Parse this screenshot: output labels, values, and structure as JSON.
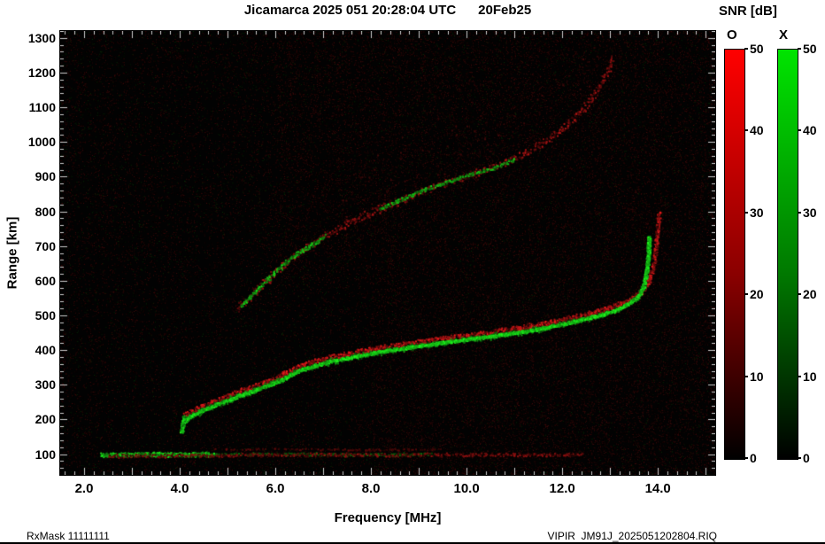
{
  "title": "Jicamarca 2025 051 20:28:04 UTC      20Feb25",
  "footer": {
    "left": "RxMask 11111111",
    "right": "VIPIR  JM91J_2025051202804.RIQ"
  },
  "colorbar": {
    "title": "SNR [dB]",
    "min": 0,
    "max": 50,
    "ticks": [
      0,
      10,
      20,
      30,
      40,
      50
    ],
    "bars": [
      {
        "label": "O",
        "top_color": "#ff0000",
        "mid_color": "#8a0000"
      },
      {
        "label": "X",
        "top_color": "#00e400",
        "mid_color": "#007800"
      }
    ]
  },
  "chart_data": {
    "type": "heatmap",
    "title": "Jicamarca 2025 051 20:28:04 UTC      20Feb25",
    "xlabel": "Frequency [MHz]",
    "ylabel": "Range [km]",
    "xlim": [
      1.5,
      15.2
    ],
    "ylim": [
      40,
      1320
    ],
    "background": "#020202",
    "seed": 1337,
    "legend": "none",
    "grid": false,
    "xticks": [
      {
        "v": 2,
        "label": "2.0"
      },
      {
        "v": 4,
        "label": "4.0"
      },
      {
        "v": 6,
        "label": "6.0"
      },
      {
        "v": 8,
        "label": "8.0"
      },
      {
        "v": 10,
        "label": "10.0"
      },
      {
        "v": 12,
        "label": "12.0"
      },
      {
        "v": 14,
        "label": "14.0"
      }
    ],
    "yticks": [
      {
        "v": 100,
        "label": "100"
      },
      {
        "v": 200,
        "label": "200"
      },
      {
        "v": 300,
        "label": "300"
      },
      {
        "v": 400,
        "label": "400"
      },
      {
        "v": 500,
        "label": "500"
      },
      {
        "v": 600,
        "label": "600"
      },
      {
        "v": 700,
        "label": "700"
      },
      {
        "v": 800,
        "label": "800"
      },
      {
        "v": 900,
        "label": "900"
      },
      {
        "v": 1000,
        "label": "1000"
      },
      {
        "v": 1100,
        "label": "1100"
      },
      {
        "v": 1200,
        "label": "1200"
      },
      {
        "v": 1300,
        "label": "1300"
      }
    ],
    "axis_ticks": {
      "x_major": 1.0,
      "x_minor": 0.2,
      "y_major": 100,
      "y_minor": 20,
      "major_len": 8,
      "minor_len": 4,
      "color": "#cccccc"
    },
    "traces": [
      {
        "name": "f-trace-o-mode-red",
        "color": [
          255,
          30,
          30
        ],
        "width_km": 18,
        "density": 2.0,
        "imin": 0.25,
        "imax": 0.95,
        "size": 2,
        "points": [
          [
            4.1,
            215
          ],
          [
            4.4,
            235
          ],
          [
            4.8,
            258
          ],
          [
            5.2,
            280
          ],
          [
            5.6,
            300
          ],
          [
            6.0,
            320
          ],
          [
            6.4,
            350
          ],
          [
            6.8,
            368
          ],
          [
            7.2,
            382
          ],
          [
            7.6,
            393
          ],
          [
            8.0,
            404
          ],
          [
            8.5,
            415
          ],
          [
            9.0,
            425
          ],
          [
            9.5,
            435
          ],
          [
            10.0,
            444
          ],
          [
            10.5,
            453
          ],
          [
            11.0,
            463
          ],
          [
            11.5,
            474
          ],
          [
            12.0,
            488
          ],
          [
            12.4,
            501
          ],
          [
            12.8,
            515
          ],
          [
            13.1,
            529
          ],
          [
            13.4,
            546
          ],
          [
            13.65,
            570
          ],
          [
            13.8,
            600
          ],
          [
            13.9,
            645
          ],
          [
            13.95,
            700
          ],
          [
            13.99,
            760
          ],
          [
            14.02,
            800
          ]
        ]
      },
      {
        "name": "f-trace-x-mode-green-wide",
        "color": [
          30,
          255,
          30
        ],
        "width_km": 20,
        "density": 1.5,
        "imin": 0.2,
        "imax": 0.6,
        "size": 2,
        "points": [
          [
            4.05,
            190
          ],
          [
            4.2,
            210
          ],
          [
            4.5,
            230
          ],
          [
            4.9,
            252
          ],
          [
            5.3,
            273
          ],
          [
            5.7,
            293
          ],
          [
            6.1,
            313
          ],
          [
            6.45,
            340
          ],
          [
            6.8,
            356
          ],
          [
            7.2,
            370
          ],
          [
            7.6,
            382
          ],
          [
            8.0,
            392
          ],
          [
            8.5,
            403
          ],
          [
            9.0,
            413
          ],
          [
            9.5,
            423
          ],
          [
            10.0,
            432
          ],
          [
            10.5,
            441
          ],
          [
            11.0,
            451
          ],
          [
            11.5,
            462
          ],
          [
            12.0,
            476
          ],
          [
            12.4,
            489
          ],
          [
            12.8,
            503
          ],
          [
            13.1,
            516
          ],
          [
            13.35,
            532
          ],
          [
            13.55,
            552
          ],
          [
            13.68,
            580
          ],
          [
            13.75,
            620
          ],
          [
            13.79,
            670
          ],
          [
            13.81,
            730
          ]
        ]
      },
      {
        "name": "f-trace-x-mode-green-core",
        "color": [
          30,
          255,
          30
        ],
        "width_km": 9,
        "density": 3.0,
        "imin": 0.55,
        "imax": 1.0,
        "size": 2,
        "points": [
          [
            4.05,
            190
          ],
          [
            4.2,
            210
          ],
          [
            4.5,
            230
          ],
          [
            4.9,
            252
          ],
          [
            5.3,
            273
          ],
          [
            5.7,
            293
          ],
          [
            6.1,
            313
          ],
          [
            6.45,
            340
          ],
          [
            6.8,
            356
          ],
          [
            7.2,
            370
          ],
          [
            7.6,
            382
          ],
          [
            8.0,
            392
          ],
          [
            8.5,
            403
          ],
          [
            9.0,
            413
          ],
          [
            9.5,
            423
          ],
          [
            10.0,
            432
          ],
          [
            10.5,
            441
          ],
          [
            11.0,
            451
          ],
          [
            11.5,
            462
          ],
          [
            12.0,
            476
          ],
          [
            12.4,
            489
          ],
          [
            12.8,
            503
          ],
          [
            13.1,
            516
          ],
          [
            13.35,
            532
          ],
          [
            13.55,
            552
          ],
          [
            13.68,
            580
          ],
          [
            13.75,
            620
          ],
          [
            13.79,
            670
          ],
          [
            13.81,
            730
          ]
        ]
      },
      {
        "name": "f-trace-start-blob-green",
        "color": [
          30,
          255,
          30
        ],
        "width_km": 24,
        "density": 3.5,
        "imin": 0.35,
        "imax": 0.95,
        "size": 2,
        "points": [
          [
            4.03,
            168
          ],
          [
            4.06,
            190
          ],
          [
            4.1,
            212
          ]
        ]
      },
      {
        "name": "second-hop-red",
        "color": [
          255,
          30,
          30
        ],
        "width_km": 26,
        "density": 1.1,
        "imin": 0.18,
        "imax": 0.7,
        "size": 2,
        "points": [
          [
            5.2,
            520
          ],
          [
            5.5,
            560
          ],
          [
            5.9,
            615
          ],
          [
            6.3,
            663
          ],
          [
            6.7,
            703
          ],
          [
            7.1,
            738
          ],
          [
            7.5,
            766
          ],
          [
            8.0,
            798
          ],
          [
            8.5,
            828
          ],
          [
            9.0,
            856
          ],
          [
            9.5,
            880
          ],
          [
            10.0,
            903
          ],
          [
            10.5,
            926
          ],
          [
            11.0,
            956
          ],
          [
            11.4,
            984
          ],
          [
            11.8,
            1018
          ],
          [
            12.1,
            1052
          ],
          [
            12.4,
            1092
          ],
          [
            12.6,
            1128
          ],
          [
            12.8,
            1168
          ],
          [
            12.95,
            1208
          ],
          [
            13.05,
            1245
          ]
        ]
      },
      {
        "name": "second-hop-green-a",
        "color": [
          30,
          255,
          30
        ],
        "width_km": 12,
        "density": 1.4,
        "imin": 0.3,
        "imax": 0.85,
        "size": 2,
        "points": [
          [
            5.25,
            527
          ],
          [
            5.6,
            574
          ],
          [
            6.0,
            628
          ],
          [
            6.4,
            675
          ],
          [
            6.8,
            710
          ],
          [
            7.05,
            733
          ]
        ]
      },
      {
        "name": "second-hop-green-b",
        "color": [
          30,
          255,
          30
        ],
        "width_km": 11,
        "density": 1.3,
        "imin": 0.3,
        "imax": 0.85,
        "size": 2,
        "points": [
          [
            8.2,
            810
          ],
          [
            8.6,
            834
          ],
          [
            9.0,
            858
          ],
          [
            9.4,
            877
          ],
          [
            9.8,
            897
          ],
          [
            10.2,
            913
          ],
          [
            10.6,
            928
          ],
          [
            11.0,
            952
          ]
        ]
      },
      {
        "name": "spread-cloud-red",
        "color": [
          255,
          40,
          40
        ],
        "width_km": 170,
        "density": 0.3,
        "imin": 0.06,
        "imax": 0.28,
        "size": 2,
        "points": [
          [
            7.3,
            840
          ],
          [
            8.2,
            895
          ],
          [
            9.2,
            950
          ],
          [
            10.2,
            1010
          ],
          [
            11.2,
            1075
          ],
          [
            12.0,
            1140
          ],
          [
            12.7,
            1210
          ]
        ]
      },
      {
        "name": "e-layer-green",
        "color": [
          30,
          255,
          30
        ],
        "width_km": 15,
        "density": 3.0,
        "imin": 0.35,
        "imax": 0.95,
        "size": 2,
        "points": [
          [
            2.35,
            100
          ],
          [
            2.8,
            100
          ],
          [
            3.3,
            101
          ],
          [
            3.8,
            100
          ],
          [
            4.3,
            101
          ],
          [
            4.7,
            100
          ]
        ]
      },
      {
        "name": "e-layer-green-ext",
        "color": [
          30,
          255,
          30
        ],
        "width_km": 10,
        "density": 0.7,
        "imin": 0.18,
        "imax": 0.5,
        "size": 2,
        "points": [
          [
            4.7,
            100
          ],
          [
            5.6,
            101
          ],
          [
            6.5,
            102
          ],
          [
            7.5,
            100
          ],
          [
            8.5,
            100
          ],
          [
            9.3,
            101
          ]
        ]
      },
      {
        "name": "e-layer-red",
        "color": [
          255,
          30,
          30
        ],
        "width_km": 12,
        "density": 0.9,
        "imin": 0.15,
        "imax": 0.6,
        "size": 2,
        "points": [
          [
            2.5,
            96
          ],
          [
            3.5,
            97
          ],
          [
            4.5,
            98
          ],
          [
            5.5,
            99
          ],
          [
            6.5,
            100
          ],
          [
            7.5,
            100
          ],
          [
            8.5,
            99
          ],
          [
            9.5,
            100
          ],
          [
            10.5,
            100
          ],
          [
            11.5,
            100
          ],
          [
            12.4,
            100
          ]
        ]
      },
      {
        "name": "e-layer-red-top",
        "color": [
          255,
          30,
          30
        ],
        "width_km": 6,
        "density": 0.4,
        "imin": 0.1,
        "imax": 0.4,
        "size": 2,
        "points": [
          [
            4.5,
            115
          ],
          [
            6.0,
            116
          ],
          [
            8.0,
            114
          ],
          [
            9.5,
            115
          ]
        ]
      }
    ],
    "noise": [
      {
        "name": "red-noise-uniform",
        "color": [
          255,
          40,
          40
        ],
        "count": 30000,
        "imin": 0.05,
        "imax": 0.3,
        "size": 1
      },
      {
        "name": "green-noise-uniform",
        "color": [
          40,
          255,
          40
        ],
        "count": 7000,
        "imin": 0.04,
        "imax": 0.2,
        "size": 1
      },
      {
        "name": "red-noise-upper",
        "color": [
          255,
          40,
          40
        ],
        "count": 9000,
        "imin": 0.05,
        "imax": 0.3,
        "size": 1,
        "xr": [
          6,
          15.2
        ],
        "yr": [
          600,
          1320
        ]
      },
      {
        "name": "red-noise-right",
        "color": [
          255,
          50,
          50
        ],
        "count": 6000,
        "imin": 0.05,
        "imax": 0.28,
        "size": 1,
        "xr": [
          8,
          15.2
        ],
        "yr": [
          40,
          600
        ]
      }
    ]
  }
}
